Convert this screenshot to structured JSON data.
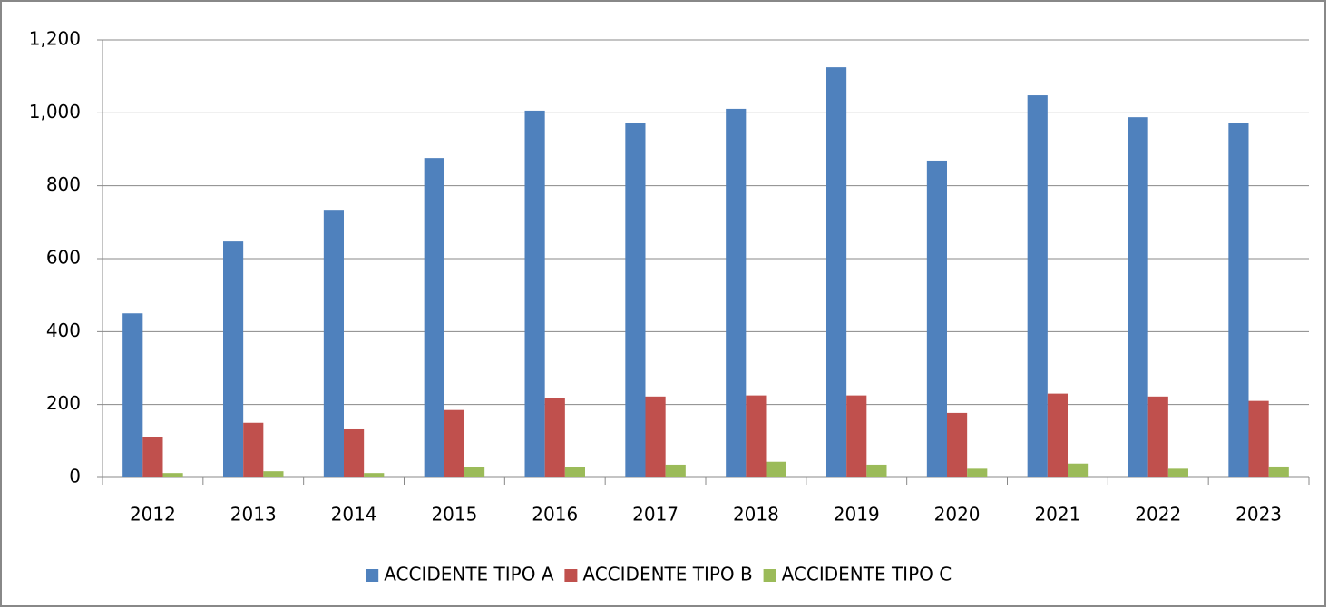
{
  "chart_data": {
    "type": "bar",
    "categories": [
      "2012",
      "2013",
      "2014",
      "2015",
      "2016",
      "2017",
      "2018",
      "2019",
      "2020",
      "2021",
      "2022",
      "2023"
    ],
    "series": [
      {
        "name": "ACCIDENTE TIPO A",
        "color": "#4f81bd",
        "values": [
          450,
          647,
          734,
          876,
          1006,
          973,
          1011,
          1125,
          869,
          1048,
          988,
          973
        ]
      },
      {
        "name": "ACCIDENTE TIPO B",
        "color": "#c0504d",
        "values": [
          110,
          150,
          132,
          185,
          218,
          222,
          225,
          225,
          177,
          230,
          222,
          210
        ]
      },
      {
        "name": "ACCIDENTE TIPO C",
        "color": "#9bbb59",
        "values": [
          12,
          17,
          12,
          28,
          28,
          35,
          43,
          35,
          24,
          38,
          24,
          30
        ]
      }
    ],
    "ylim": [
      0,
      1200
    ],
    "yticks": [
      0,
      200,
      400,
      600,
      800,
      {
        "value": 1000,
        "label": "1,000"
      },
      {
        "value": 1200,
        "label": "1,200"
      }
    ],
    "grid": true,
    "legend": "bottom"
  }
}
